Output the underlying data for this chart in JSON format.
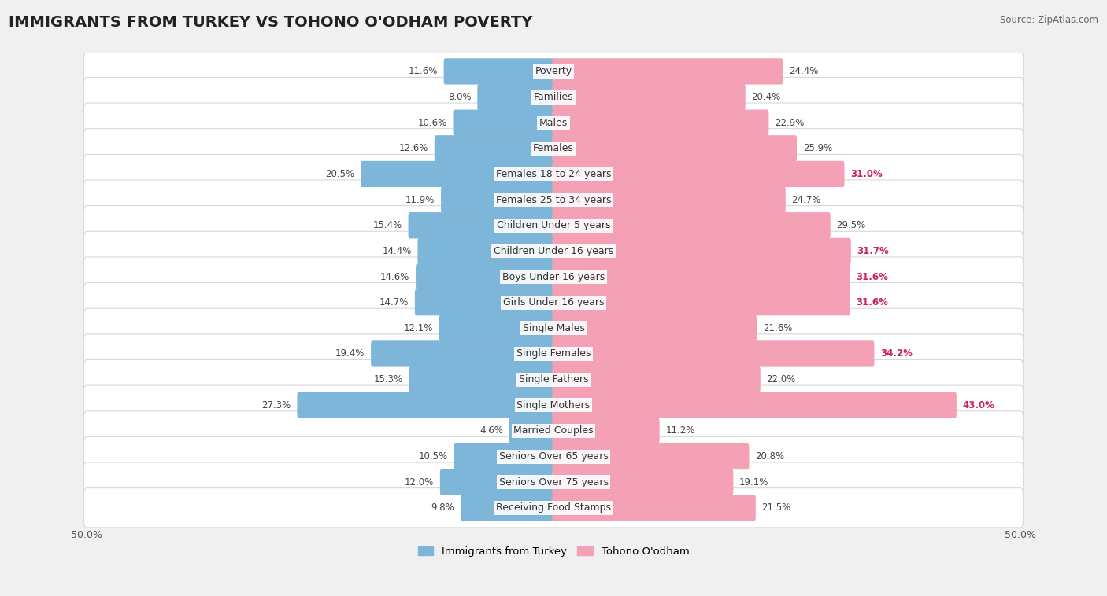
{
  "title": "IMMIGRANTS FROM TURKEY VS TOHONO O'ODHAM POVERTY",
  "source": "Source: ZipAtlas.com",
  "categories": [
    "Poverty",
    "Families",
    "Males",
    "Females",
    "Females 18 to 24 years",
    "Females 25 to 34 years",
    "Children Under 5 years",
    "Children Under 16 years",
    "Boys Under 16 years",
    "Girls Under 16 years",
    "Single Males",
    "Single Females",
    "Single Fathers",
    "Single Mothers",
    "Married Couples",
    "Seniors Over 65 years",
    "Seniors Over 75 years",
    "Receiving Food Stamps"
  ],
  "left_values": [
    11.6,
    8.0,
    10.6,
    12.6,
    20.5,
    11.9,
    15.4,
    14.4,
    14.6,
    14.7,
    12.1,
    19.4,
    15.3,
    27.3,
    4.6,
    10.5,
    12.0,
    9.8
  ],
  "right_values": [
    24.4,
    20.4,
    22.9,
    25.9,
    31.0,
    24.7,
    29.5,
    31.7,
    31.6,
    31.6,
    21.6,
    34.2,
    22.0,
    43.0,
    11.2,
    20.8,
    19.1,
    21.5
  ],
  "left_color": "#7EB6D9",
  "right_color": "#F4A0B5",
  "background_color": "#f0f0f0",
  "row_bg_color": "#ffffff",
  "axis_max": 50.0,
  "legend_left": "Immigrants from Turkey",
  "legend_right": "Tohono O'odham",
  "title_fontsize": 14,
  "label_fontsize": 9,
  "value_fontsize": 8.5,
  "axis_label_fontsize": 9
}
